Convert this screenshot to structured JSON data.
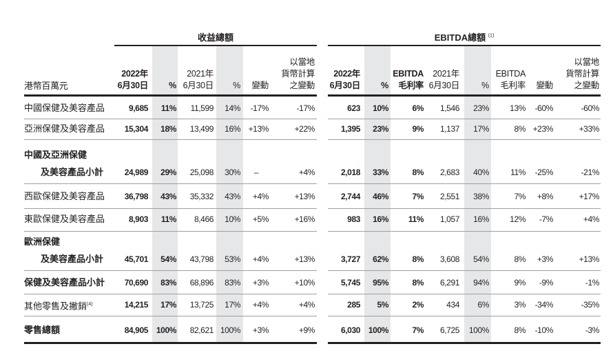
{
  "revenue_group": {
    "title": "收益總額"
  },
  "ebitda_group": {
    "title": "EBITDA總額",
    "note": "(1)"
  },
  "unit_label": "港幣百萬元",
  "revenue_headers": [
    "2022年\n6月30日",
    "%",
    "2021年\n6月30日",
    "%",
    "變動",
    "以當地\n貨幣計算\n之變動"
  ],
  "ebitda_headers": [
    "2022年\n6月30日",
    "%",
    "EBITDA\n毛利率",
    "2021年\n6月30日",
    "%",
    "EBITDA\n毛利率",
    "變動",
    "以當地\n貨幣計算\n之變動"
  ],
  "rows": [
    {
      "label": [
        "中國保健及美容產品"
      ],
      "bold": false,
      "revenue": [
        "9,685",
        "11%",
        "11,599",
        "14%",
        "-17%",
        "-17%"
      ],
      "ebitda": [
        "623",
        "10%",
        "6%",
        "1,546",
        "23%",
        "13%",
        "-60%",
        "-60%"
      ]
    },
    {
      "label": [
        "亞洲保健及美容產品"
      ],
      "bold": false,
      "revenue": [
        "15,304",
        "18%",
        "13,499",
        "16%",
        "+13%",
        "+22%"
      ],
      "ebitda": [
        "1,395",
        "23%",
        "9%",
        "1,137",
        "17%",
        "8%",
        "+23%",
        "+33%"
      ]
    },
    {
      "label": [
        "中國及亞洲保健",
        "及美容產品小計"
      ],
      "bold": true,
      "revenue": [
        "24,989",
        "29%",
        "25,098",
        "30%",
        "–",
        "+4%"
      ],
      "ebitda": [
        "2,018",
        "33%",
        "8%",
        "2,683",
        "40%",
        "11%",
        "-25%",
        "-21%"
      ]
    },
    {
      "label": [
        "西歐保健及美容產品"
      ],
      "bold": false,
      "revenue": [
        "36,798",
        "43%",
        "35,332",
        "43%",
        "+4%",
        "+13%"
      ],
      "ebitda": [
        "2,744",
        "46%",
        "7%",
        "2,551",
        "38%",
        "7%",
        "+8%",
        "+17%"
      ]
    },
    {
      "label": [
        "東歐保健及美容產品"
      ],
      "bold": false,
      "revenue": [
        "8,903",
        "11%",
        "8,466",
        "10%",
        "+5%",
        "+16%"
      ],
      "ebitda": [
        "983",
        "16%",
        "11%",
        "1,057",
        "16%",
        "12%",
        "-7%",
        "+4%"
      ]
    },
    {
      "label": [
        "歐洲保健",
        "及美容產品小計"
      ],
      "bold": true,
      "revenue": [
        "45,701",
        "54%",
        "43,798",
        "53%",
        "+4%",
        "+13%"
      ],
      "ebitda": [
        "3,727",
        "62%",
        "8%",
        "3,608",
        "54%",
        "8%",
        "+3%",
        "+13%"
      ]
    },
    {
      "label": [
        "保健及美容產品小計"
      ],
      "bold": true,
      "revenue": [
        "70,690",
        "83%",
        "68,896",
        "83%",
        "+3%",
        "+10%"
      ],
      "ebitda": [
        "5,745",
        "95%",
        "8%",
        "6,291",
        "94%",
        "9%",
        "-9%",
        "-1%"
      ]
    },
    {
      "label": [
        "其他零售及撇銷"
      ],
      "note": "(4)",
      "bold": false,
      "revenue": [
        "14,215",
        "17%",
        "13,725",
        "17%",
        "+4%",
        "+4%"
      ],
      "ebitda": [
        "285",
        "5%",
        "2%",
        "434",
        "6%",
        "3%",
        "-34%",
        "-35%"
      ]
    },
    {
      "label": [
        "零售總額"
      ],
      "bold": true,
      "revenue": [
        "84,905",
        "100%",
        "82,621",
        "100%",
        "+3%",
        "+9%"
      ],
      "ebitda": [
        "6,030",
        "100%",
        "7%",
        "6,725",
        "100%",
        "8%",
        "-10%",
        "-3%"
      ]
    }
  ],
  "colors": {
    "shade": "#e6e7e8",
    "text": "#231f20",
    "rule": "#9d9fa2"
  }
}
